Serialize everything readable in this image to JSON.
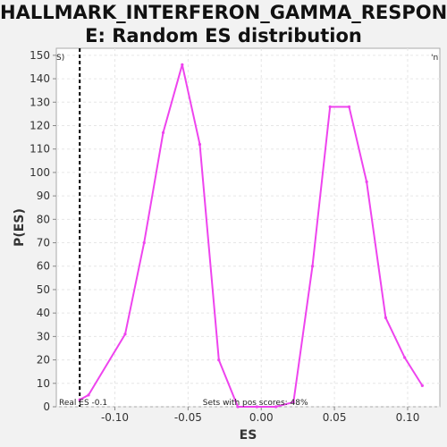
{
  "chart_data": {
    "type": "line",
    "title": "HALLMARK_INTERFERON_GAMMA_RESPONSE: Random ES distribution",
    "title_lines": [
      "HALLMARK_INTERFERON_GAMMA_RESPONS",
      "E: Random ES distribution"
    ],
    "xlabel": "ES",
    "ylabel": "P(ES)",
    "xlim": [
      -0.14,
      0.122
    ],
    "ylim": [
      0,
      153
    ],
    "xticks": [
      -0.1,
      -0.05,
      0.0,
      0.05,
      0.1
    ],
    "xtick_labels": [
      "-0.10",
      "-0.05",
      "0.00",
      "0.05",
      "0.10"
    ],
    "yticks": [
      0,
      10,
      20,
      30,
      40,
      50,
      60,
      70,
      80,
      90,
      100,
      110,
      120,
      130,
      140,
      150
    ],
    "grid": true,
    "series": [
      {
        "color": "#ee44ee",
        "x": [
          -0.124,
          -0.118,
          -0.093,
          -0.08,
          -0.067,
          -0.054,
          -0.042,
          -0.029,
          -0.016,
          -0.003,
          0.01,
          0.022,
          0.035,
          0.047,
          0.06,
          0.072,
          0.085,
          0.098,
          0.11
        ],
        "y": [
          3,
          5,
          31,
          70,
          117,
          146,
          112,
          20,
          0,
          0,
          0,
          2,
          60,
          128,
          128,
          96,
          38,
          21,
          9
        ]
      }
    ],
    "real_es": {
      "value": -0.1,
      "x": -0.124,
      "label": "Real ES -0.1",
      "color": "#000000"
    },
    "annotations": {
      "sets_pos": "Sets with pos scores: 48%",
      "left_corner": "S)",
      "right_corner": "'n",
      "left_corner_color": "#cc0000",
      "right_corner_color": "#0000cc"
    },
    "plot_background": "#ffffff",
    "grid_color": "#e6e6e6"
  }
}
